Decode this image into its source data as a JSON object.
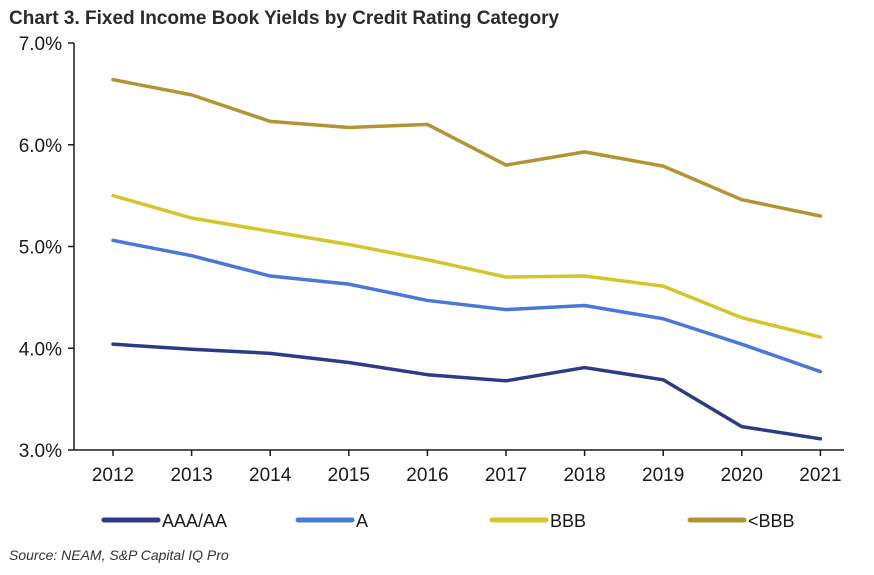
{
  "chart_data": {
    "type": "line",
    "title": "Chart 3. Fixed Income Book Yields by Credit Rating Category",
    "source": "Source: NEAM, S&P Capital IQ Pro",
    "xlabel": "",
    "ylabel": "",
    "categories": [
      "2012",
      "2013",
      "2014",
      "2015",
      "2016",
      "2017",
      "2018",
      "2019",
      "2020",
      "2021"
    ],
    "ylim": [
      3.0,
      7.0
    ],
    "yticks": [
      "3.0%",
      "4.0%",
      "5.0%",
      "6.0%",
      "7.0%"
    ],
    "grid": false,
    "legend": "bottom",
    "series": [
      {
        "name": "AAA/AA",
        "color": "#2e3a87",
        "values": [
          4.04,
          3.99,
          3.95,
          3.86,
          3.74,
          3.68,
          3.81,
          3.69,
          3.23,
          3.11
        ]
      },
      {
        "name": "A",
        "color": "#4a78d8",
        "values": [
          5.06,
          4.91,
          4.71,
          4.63,
          4.47,
          4.38,
          4.42,
          4.29,
          4.04,
          3.77
        ]
      },
      {
        "name": "BBB",
        "color": "#d4c52a",
        "values": [
          5.5,
          5.28,
          5.15,
          5.02,
          4.87,
          4.7,
          4.71,
          4.61,
          4.3,
          4.11
        ]
      },
      {
        "name": "<BBB",
        "color": "#b39434",
        "values": [
          6.64,
          6.49,
          6.23,
          6.17,
          6.2,
          5.8,
          5.93,
          5.79,
          5.46,
          5.3
        ]
      }
    ]
  }
}
